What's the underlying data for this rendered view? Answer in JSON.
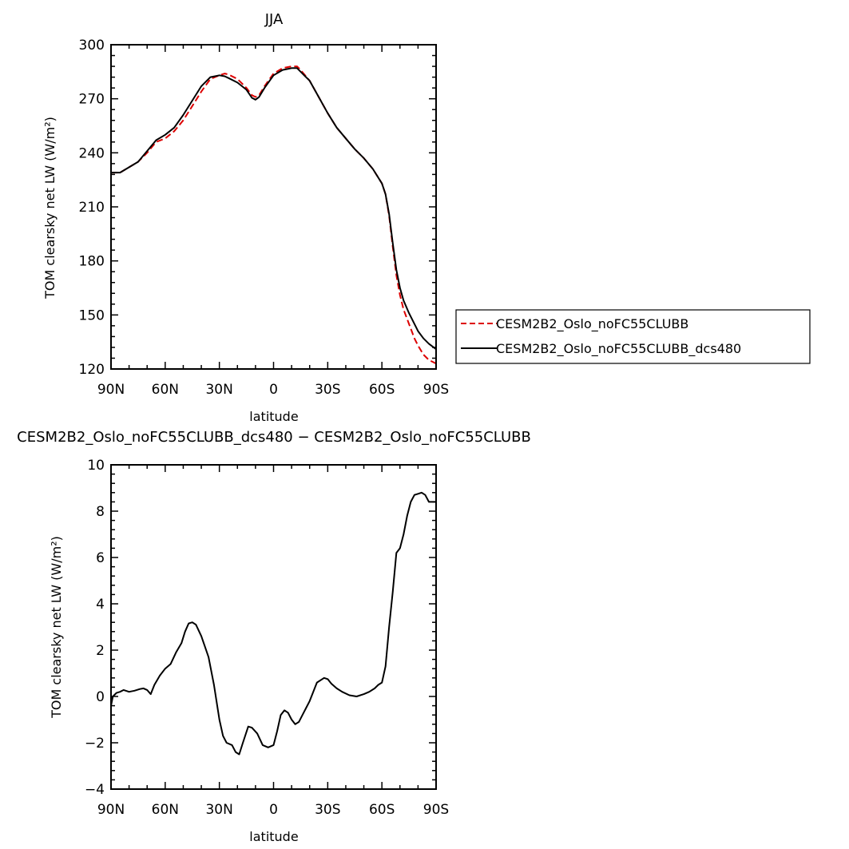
{
  "chart_data": [
    {
      "type": "line",
      "title": "JJA",
      "xlabel": "latitude",
      "ylabel": "TOM clearsky net LW (W/m²)",
      "xlim": [
        90,
        -90
      ],
      "ylim": [
        120,
        300
      ],
      "x_ticks": [
        90,
        60,
        30,
        0,
        -30,
        -60,
        -90
      ],
      "x_tick_labels": [
        "90N",
        "60N",
        "30N",
        "0",
        "30S",
        "60S",
        "90S"
      ],
      "y_ticks": [
        120,
        150,
        180,
        210,
        240,
        270,
        300
      ],
      "y_tick_labels": [
        "120",
        "150",
        "180",
        "210",
        "240",
        "270",
        "300"
      ],
      "grid": false,
      "legend_position": "right",
      "series": [
        {
          "name": "CESM2B2_Oslo_noFC55CLUBB",
          "color": "#dd0000",
          "style": "dashed",
          "x": [
            90,
            85,
            80,
            75,
            70,
            65,
            60,
            55,
            50,
            45,
            40,
            35,
            30,
            27,
            25,
            20,
            15,
            12,
            10,
            8,
            5,
            0,
            -5,
            -10,
            -13,
            -15,
            -20,
            -25,
            -30,
            -35,
            -40,
            -45,
            -50,
            -55,
            -60,
            -62,
            -64,
            -66,
            -68,
            -70,
            -72,
            -75,
            -78,
            -80,
            -83,
            -86,
            -90
          ],
          "y": [
            229,
            229,
            232,
            235,
            240,
            246,
            248,
            252,
            258,
            266,
            274,
            281,
            283,
            284,
            283.5,
            281,
            276,
            272,
            271,
            272,
            277,
            284,
            287,
            288,
            288,
            286,
            280,
            271,
            262,
            254,
            248,
            242,
            237,
            231,
            223,
            217,
            205,
            188,
            172,
            161,
            153,
            145,
            137,
            133,
            128,
            125,
            123
          ]
        },
        {
          "name": "CESM2B2_Oslo_noFC55CLUBB_dcs480",
          "color": "#000000",
          "style": "solid",
          "x": [
            90,
            85,
            80,
            75,
            70,
            65,
            60,
            55,
            50,
            45,
            40,
            35,
            30,
            27,
            25,
            20,
            15,
            12,
            10,
            8,
            5,
            0,
            -5,
            -10,
            -13,
            -15,
            -20,
            -25,
            -30,
            -35,
            -40,
            -45,
            -50,
            -55,
            -60,
            -62,
            -64,
            -66,
            -68,
            -70,
            -72,
            -75,
            -78,
            -80,
            -83,
            -86,
            -90
          ],
          "y": [
            229,
            229,
            232,
            235,
            241,
            247,
            250,
            254,
            261,
            269,
            277,
            282,
            283,
            282.5,
            281.5,
            279,
            275,
            270.5,
            269.5,
            271,
            276,
            283,
            286,
            287,
            287,
            285,
            280,
            271,
            262,
            254,
            248,
            242,
            237,
            231,
            223,
            217,
            206,
            190,
            175,
            165,
            158,
            151,
            145,
            141,
            137,
            134,
            131
          ]
        }
      ]
    },
    {
      "type": "line",
      "title": "CESM2B2_Oslo_noFC55CLUBB_dcs480 − CESM2B2_Oslo_noFC55CLUBB",
      "xlabel": "latitude",
      "ylabel": "TOM clearsky net LW (W/m²)",
      "xlim": [
        90,
        -90
      ],
      "ylim": [
        -4,
        10
      ],
      "x_ticks": [
        90,
        60,
        30,
        0,
        -30,
        -60,
        -90
      ],
      "x_tick_labels": [
        "90N",
        "60N",
        "30N",
        "0",
        "30S",
        "60S",
        "90S"
      ],
      "y_ticks": [
        -4,
        -2,
        0,
        2,
        4,
        6,
        8,
        10
      ],
      "y_tick_labels": [
        "−4",
        "−2",
        "0",
        "2",
        "4",
        "6",
        "8",
        "10"
      ],
      "grid": false,
      "series": [
        {
          "color": "#000000",
          "style": "solid",
          "x": [
            90,
            89,
            87,
            85,
            83,
            80,
            77,
            74,
            72,
            70,
            68,
            66,
            63,
            60,
            57,
            54,
            51,
            49,
            47,
            45,
            43,
            40,
            36,
            33,
            30,
            28,
            26,
            23,
            21,
            19,
            17,
            14,
            12,
            9,
            6,
            3,
            0,
            -2,
            -4,
            -6,
            -8,
            -10,
            -12,
            -14,
            -16,
            -18,
            -20,
            -24,
            -28,
            -30,
            -32,
            -35,
            -38,
            -42,
            -46,
            -50,
            -53,
            -56,
            -58,
            -60,
            -62,
            -64,
            -66,
            -68,
            -70,
            -72,
            -74,
            -76,
            -78,
            -80,
            -82,
            -84,
            -86,
            -88,
            -90
          ],
          "y": [
            -0.4,
            0,
            0.15,
            0.2,
            0.28,
            0.2,
            0.25,
            0.32,
            0.35,
            0.28,
            0.1,
            0.5,
            0.9,
            1.2,
            1.4,
            1.9,
            2.3,
            2.8,
            3.15,
            3.2,
            3.1,
            2.6,
            1.7,
            0.5,
            -1,
            -1.7,
            -2.0,
            -2.1,
            -2.4,
            -2.5,
            -2.0,
            -1.3,
            -1.35,
            -1.6,
            -2.1,
            -2.2,
            -2.1,
            -1.5,
            -0.8,
            -0.6,
            -0.7,
            -1.0,
            -1.2,
            -1.1,
            -0.8,
            -0.5,
            -0.2,
            0.6,
            0.8,
            0.75,
            0.55,
            0.35,
            0.2,
            0.05,
            0.0,
            0.1,
            0.2,
            0.35,
            0.5,
            0.6,
            1.3,
            3.0,
            4.5,
            6.2,
            6.4,
            7.0,
            7.8,
            8.4,
            8.7,
            8.75,
            8.8,
            8.7,
            8.4,
            8.4,
            8.4
          ]
        }
      ]
    }
  ]
}
